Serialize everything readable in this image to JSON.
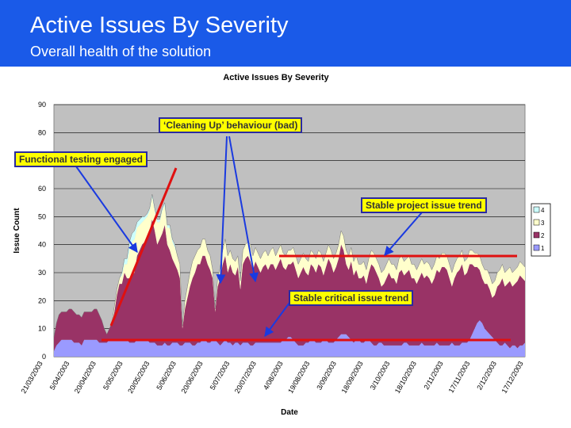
{
  "header": {
    "title": "Active Issues By Severity",
    "subtitle": "Overall health of the solution"
  },
  "colors": {
    "header_bg": "#1a5ae8",
    "plot_bg": "#c0c0c0",
    "sev_1": "#9a9aff",
    "sev_2": "#993366",
    "sev_3": "#ffffcc",
    "sev_4": "#ccffff",
    "annotation_arrow": "#1a3ae0",
    "trend_line": "#e01010",
    "callout_box": "#ffff00"
  },
  "chart_data": {
    "type": "area",
    "stacked": true,
    "title": "Active Issues By Severity",
    "xlabel": "Date",
    "ylabel": "Issue Count",
    "ylim": [
      0,
      90
    ],
    "yticks": [
      "0",
      "10",
      "20",
      "30",
      "40",
      "50",
      "60",
      "70",
      "80",
      "90"
    ],
    "xticks": [
      "21/03/2003",
      "5/04/2003",
      "20/04/2003",
      "5/05/2003",
      "20/05/2003",
      "5/06/2003",
      "20/06/2003",
      "5/07/2003",
      "20/07/2003",
      "4/08/2003",
      "19/08/2003",
      "3/09/2003",
      "18/09/2003",
      "3/10/2003",
      "18/10/2003",
      "2/11/2003",
      "17/11/2003",
      "2/12/2003",
      "17/12/2003"
    ],
    "grid": true,
    "legend": {
      "position": "right",
      "entries": [
        "4",
        "3",
        "2",
        "1"
      ]
    },
    "series": [
      {
        "name": "1",
        "values": [
          2,
          4,
          5,
          6,
          6,
          6,
          6,
          6,
          5,
          5,
          5,
          4,
          6,
          6,
          6,
          6,
          6,
          6,
          5,
          5,
          5,
          5,
          6,
          6,
          6,
          6,
          6,
          6,
          6,
          6,
          5,
          5,
          5,
          6,
          6,
          6,
          6,
          6,
          5,
          5,
          5,
          4,
          4,
          4,
          5,
          4,
          4,
          5,
          5,
          5,
          4,
          4,
          5,
          5,
          5,
          4,
          4,
          5,
          5,
          6,
          6,
          5,
          5,
          6,
          6,
          5,
          4,
          5,
          6,
          5,
          5,
          4,
          5,
          5,
          4,
          5,
          5,
          5,
          4,
          4,
          5,
          5,
          5,
          5,
          5,
          5,
          5,
          5,
          5,
          5,
          5,
          6,
          6,
          7,
          7,
          6,
          5,
          4,
          4,
          4,
          5,
          5,
          6,
          6,
          5,
          5,
          5,
          6,
          6,
          5,
          5,
          5,
          6,
          7,
          8,
          8,
          8,
          7,
          6,
          5,
          6,
          6,
          5,
          5,
          6,
          6,
          5,
          4,
          4,
          5,
          5,
          4,
          4,
          4,
          4,
          4,
          4,
          4,
          4,
          5,
          5,
          4,
          4,
          4,
          4,
          4,
          5,
          4,
          4,
          4,
          4,
          4,
          5,
          4,
          4,
          4,
          4,
          4,
          5,
          4,
          4,
          4,
          5,
          5,
          5,
          6,
          8,
          10,
          12,
          13,
          12,
          10,
          9,
          8,
          7,
          6,
          5,
          4,
          4,
          5,
          4,
          3,
          4,
          4,
          3,
          4,
          4,
          5
        ]
      },
      {
        "name": "2",
        "values": [
          5,
          8,
          10,
          10,
          10,
          10,
          11,
          11,
          11,
          10,
          10,
          10,
          10,
          10,
          10,
          10,
          11,
          11,
          10,
          8,
          5,
          3,
          4,
          6,
          10,
          16,
          20,
          20,
          24,
          22,
          23,
          24,
          25,
          30,
          32,
          34,
          35,
          36,
          40,
          44,
          40,
          36,
          38,
          40,
          42,
          36,
          34,
          30,
          28,
          26,
          24,
          6,
          12,
          16,
          20,
          24,
          26,
          28,
          28,
          30,
          30,
          28,
          26,
          22,
          10,
          20,
          24,
          28,
          30,
          25,
          28,
          26,
          24,
          27,
          20,
          28,
          30,
          31,
          30,
          27,
          29,
          27,
          25,
          27,
          28,
          26,
          28,
          28,
          26,
          28,
          30,
          26,
          25,
          26,
          26,
          28,
          26,
          24,
          26,
          28,
          25,
          24,
          27,
          26,
          25,
          28,
          27,
          23,
          26,
          30,
          28,
          25,
          26,
          28,
          32,
          30,
          25,
          24,
          28,
          24,
          25,
          22,
          23,
          24,
          20,
          24,
          28,
          28,
          26,
          23,
          20,
          22,
          24,
          26,
          24,
          24,
          22,
          26,
          27,
          24,
          25,
          27,
          24,
          24,
          22,
          24,
          25,
          24,
          25,
          24,
          22,
          24,
          26,
          26,
          28,
          28,
          27,
          24,
          20,
          24,
          26,
          27,
          28,
          24,
          25,
          27,
          25,
          22,
          20,
          18,
          16,
          16,
          17,
          16,
          14,
          16,
          20,
          22,
          24,
          20,
          22,
          24,
          21,
          22,
          24,
          25,
          24,
          22,
          21
        ]
      },
      {
        "name": "3",
        "values": [
          0,
          0,
          0,
          0,
          0,
          0,
          0,
          0,
          0,
          0,
          0,
          0,
          0,
          0,
          0,
          0,
          0,
          0,
          0,
          0,
          0,
          0,
          0,
          0,
          2,
          2,
          2,
          3,
          3,
          5,
          10,
          12,
          12,
          10,
          9,
          8,
          8,
          8,
          7,
          8,
          7,
          8,
          6,
          8,
          7,
          6,
          8,
          6,
          6,
          5,
          5,
          1,
          3,
          4,
          5,
          6,
          6,
          5,
          6,
          6,
          6,
          5,
          5,
          3,
          1,
          3,
          4,
          5,
          6,
          6,
          5,
          5,
          5,
          4,
          3,
          5,
          5,
          5,
          6,
          5,
          5,
          5,
          5,
          5,
          5,
          5,
          5,
          6,
          5,
          5,
          5,
          5,
          5,
          5,
          5,
          5,
          5,
          5,
          5,
          5,
          5,
          5,
          5,
          5,
          5,
          5,
          5,
          5,
          5,
          5,
          5,
          5,
          5,
          5,
          5,
          5,
          5,
          5,
          5,
          5,
          5,
          5,
          5,
          5,
          5,
          5,
          5,
          5,
          5,
          5,
          5,
          5,
          5,
          5,
          5,
          5,
          5,
          5,
          5,
          5,
          5,
          5,
          5,
          5,
          5,
          5,
          5,
          5,
          5,
          5,
          5,
          5,
          5,
          5,
          5,
          5,
          5,
          5,
          5,
          5,
          5,
          5,
          5,
          5,
          5,
          5,
          5,
          5,
          5,
          5,
          5,
          5,
          5,
          5,
          5,
          5,
          5,
          5,
          5,
          5,
          5,
          5,
          5,
          5,
          5,
          5,
          5,
          5,
          5
        ]
      },
      {
        "name": "4",
        "values": [
          0,
          0,
          0,
          0,
          0,
          0,
          0,
          0,
          0,
          0,
          0,
          0,
          0,
          0,
          0,
          0,
          0,
          0,
          0,
          0,
          0,
          0,
          0,
          0,
          0,
          0,
          0,
          1,
          2,
          2,
          3,
          3,
          3,
          2,
          2,
          2,
          1,
          1,
          1,
          1,
          1,
          1,
          1,
          1,
          1,
          1,
          1,
          1,
          1,
          0,
          0,
          0,
          0,
          0,
          0,
          0,
          0,
          0,
          0,
          0,
          0,
          0,
          0,
          0,
          0,
          0,
          0,
          0,
          0,
          0,
          0,
          0,
          0,
          0,
          0,
          0,
          0,
          0,
          0,
          0,
          0,
          0,
          0,
          0,
          0,
          0,
          0,
          0,
          0,
          0,
          0,
          0,
          0,
          0,
          0,
          0,
          0,
          0,
          0,
          0,
          0,
          0,
          0,
          0,
          0,
          0,
          0,
          0,
          0,
          0,
          0,
          0,
          0,
          0,
          0,
          0,
          0,
          0,
          0,
          0,
          0,
          0,
          0,
          0,
          0,
          0,
          0,
          0,
          0,
          0,
          0,
          0,
          0,
          0,
          0,
          0,
          0,
          0,
          0,
          0,
          0,
          0,
          0,
          0,
          0,
          0,
          0,
          0,
          0,
          0,
          0,
          0,
          0,
          0,
          0,
          0,
          0,
          0,
          0,
          0,
          0,
          0,
          0,
          0,
          0,
          0,
          0,
          0,
          0,
          0,
          0,
          0,
          0,
          0,
          0,
          0,
          0,
          0,
          0,
          0,
          0,
          0,
          0,
          0,
          0,
          0,
          0,
          0,
          0
        ]
      }
    ],
    "annotations": [
      {
        "id": "cleaning",
        "text": "‘Cleaning Up’ behaviour (bad)",
        "boxed": true
      },
      {
        "id": "functional",
        "text": "Functional testing engaged",
        "boxed": true
      },
      {
        "id": "stable_project",
        "text": "Stable project issue trend",
        "boxed": true
      },
      {
        "id": "stable_critical",
        "text": "Stable critical issue trend",
        "boxed": true
      }
    ]
  }
}
